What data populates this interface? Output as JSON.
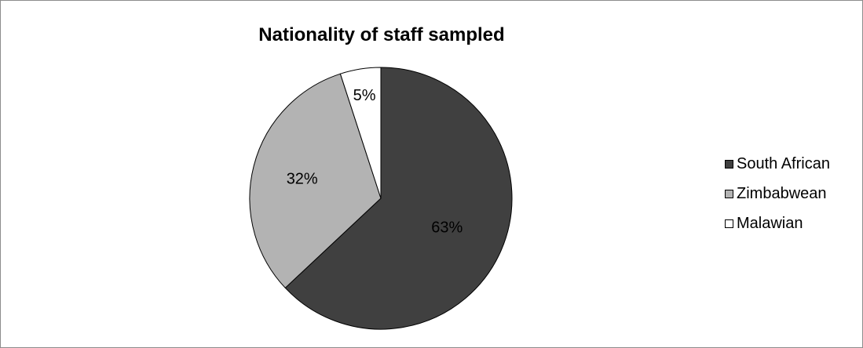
{
  "chart_data": {
    "type": "pie",
    "title": "Nationality of staff sampled",
    "categories": [
      "South African",
      "Zimbabwean",
      "Malawian"
    ],
    "values": [
      63,
      32,
      5
    ],
    "labels": [
      "63%",
      "32%",
      "5%"
    ],
    "colors": [
      "#404040",
      "#b3b3b3",
      "#ffffff"
    ],
    "legend_position": "right"
  }
}
